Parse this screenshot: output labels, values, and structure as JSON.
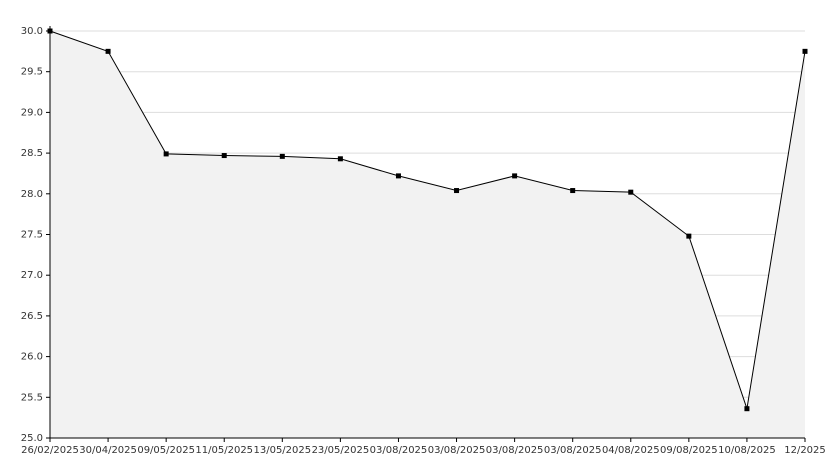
{
  "chart_data": {
    "type": "line",
    "categories": [
      "26/02/2025",
      "30/04/2025",
      "09/05/2025",
      "11/05/2025",
      "13/05/2025",
      "23/05/2025",
      "03/08/2025",
      "03/08/2025",
      "03/08/2025",
      "03/08/2025",
      "04/08/2025",
      "09/08/2025",
      "10/08/2025",
      "12/2025"
    ],
    "values": [
      30.0,
      29.75,
      28.49,
      28.47,
      28.46,
      28.43,
      28.22,
      28.04,
      28.22,
      28.04,
      28.02,
      27.48,
      25.36,
      29.75
    ],
    "color": "#000000",
    "area_color": "#f2f2f2",
    "ylim": [
      25,
      30
    ],
    "yticks": [
      {
        "value": 25,
        "label": "25.0"
      },
      {
        "value": 25.5,
        "label": "25.5"
      },
      {
        "value": 26,
        "label": "26.0"
      },
      {
        "value": 26.5,
        "label": "26.5"
      },
      {
        "value": 27,
        "label": "27.0"
      },
      {
        "value": 27.5,
        "label": "27.5"
      },
      {
        "value": 28,
        "label": "28.0"
      },
      {
        "value": 28.5,
        "label": "28.5"
      },
      {
        "value": 29,
        "label": "29.0"
      },
      {
        "value": 29.5,
        "label": "29.5"
      },
      {
        "value": 30,
        "label": "30.0"
      }
    ],
    "grid": true
  }
}
